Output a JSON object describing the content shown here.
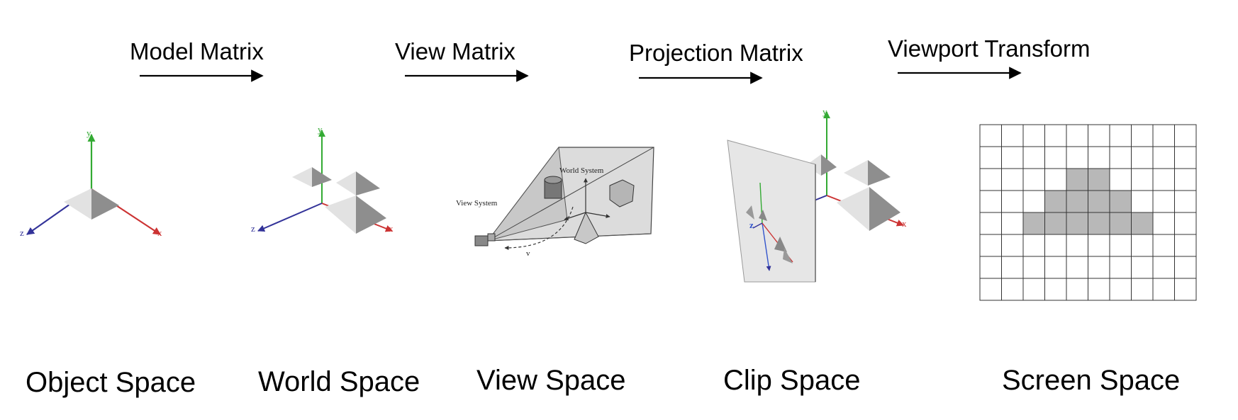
{
  "transforms": [
    {
      "label": "Model Matrix"
    },
    {
      "label": "View Matrix"
    },
    {
      "label": "Projection Matrix"
    },
    {
      "label": "Viewport Transform"
    }
  ],
  "spaces": [
    {
      "label": "Object Space"
    },
    {
      "label": "World Space"
    },
    {
      "label": "View Space"
    },
    {
      "label": "Clip Space"
    },
    {
      "label": "Screen Space"
    }
  ],
  "axes": {
    "x": "x",
    "y": "y",
    "z": "z",
    "view_axis": "v"
  },
  "view_scene": {
    "world_system": "World System",
    "view_system": "View System"
  },
  "colors": {
    "x_axis": "#cc3333",
    "y_axis": "#33aa33",
    "z_axis": "#333399",
    "arrow": "#000000",
    "shape_dark": "#8e8e8e",
    "shape_light": "#e2e2e2",
    "filled_cell": "#b8b8b8"
  },
  "screen_grid": {
    "cols": 10,
    "rows": 8,
    "filled": [
      [
        2,
        4
      ],
      [
        2,
        5
      ],
      [
        3,
        3
      ],
      [
        3,
        4
      ],
      [
        3,
        5
      ],
      [
        3,
        6
      ],
      [
        4,
        2
      ],
      [
        4,
        3
      ],
      [
        4,
        4
      ],
      [
        4,
        5
      ],
      [
        4,
        6
      ],
      [
        4,
        7
      ]
    ]
  }
}
